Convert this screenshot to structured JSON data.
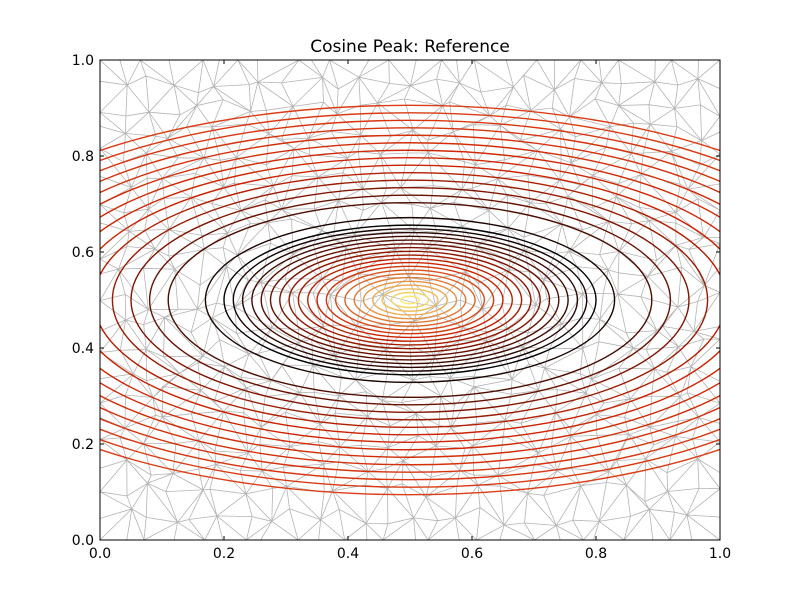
{
  "chart_data": {
    "type": "contour",
    "title": "Cosine Peak: Reference",
    "xlabel": "",
    "ylabel": "",
    "xlim": [
      0.0,
      1.0
    ],
    "ylim": [
      0.0,
      1.0
    ],
    "x_ticks": [
      "0.0",
      "0.2",
      "0.4",
      "0.6",
      "0.8",
      "1.0"
    ],
    "y_ticks": [
      "0.0",
      "0.2",
      "0.4",
      "0.6",
      "0.8",
      "1.0"
    ],
    "x_tick_values": [
      0.0,
      0.2,
      0.4,
      0.6,
      0.8,
      1.0
    ],
    "y_tick_values": [
      0.0,
      0.2,
      0.4,
      0.6,
      0.8,
      1.0
    ],
    "grid": false,
    "legend": "none",
    "peak_center": [
      0.5,
      0.5
    ],
    "contour_radii": [
      0.015,
      0.03,
      0.045,
      0.06,
      0.075,
      0.09,
      0.105,
      0.12,
      0.135,
      0.15,
      0.165,
      0.18,
      0.195,
      0.21,
      0.225,
      0.24,
      0.255,
      0.27,
      0.285,
      0.3,
      0.33,
      0.39,
      0.42,
      0.45,
      0.48,
      0.51,
      0.54,
      0.57,
      0.6,
      0.63,
      0.66,
      0.69,
      0.72,
      0.75,
      0.78
    ],
    "background_mesh": "triangulation",
    "colormap": "hot",
    "colors": {
      "mesh": "#b4b4b4",
      "axes": "#000000",
      "peak": "#ffff80",
      "mid": "#cc2200",
      "dark": "#000000"
    }
  }
}
